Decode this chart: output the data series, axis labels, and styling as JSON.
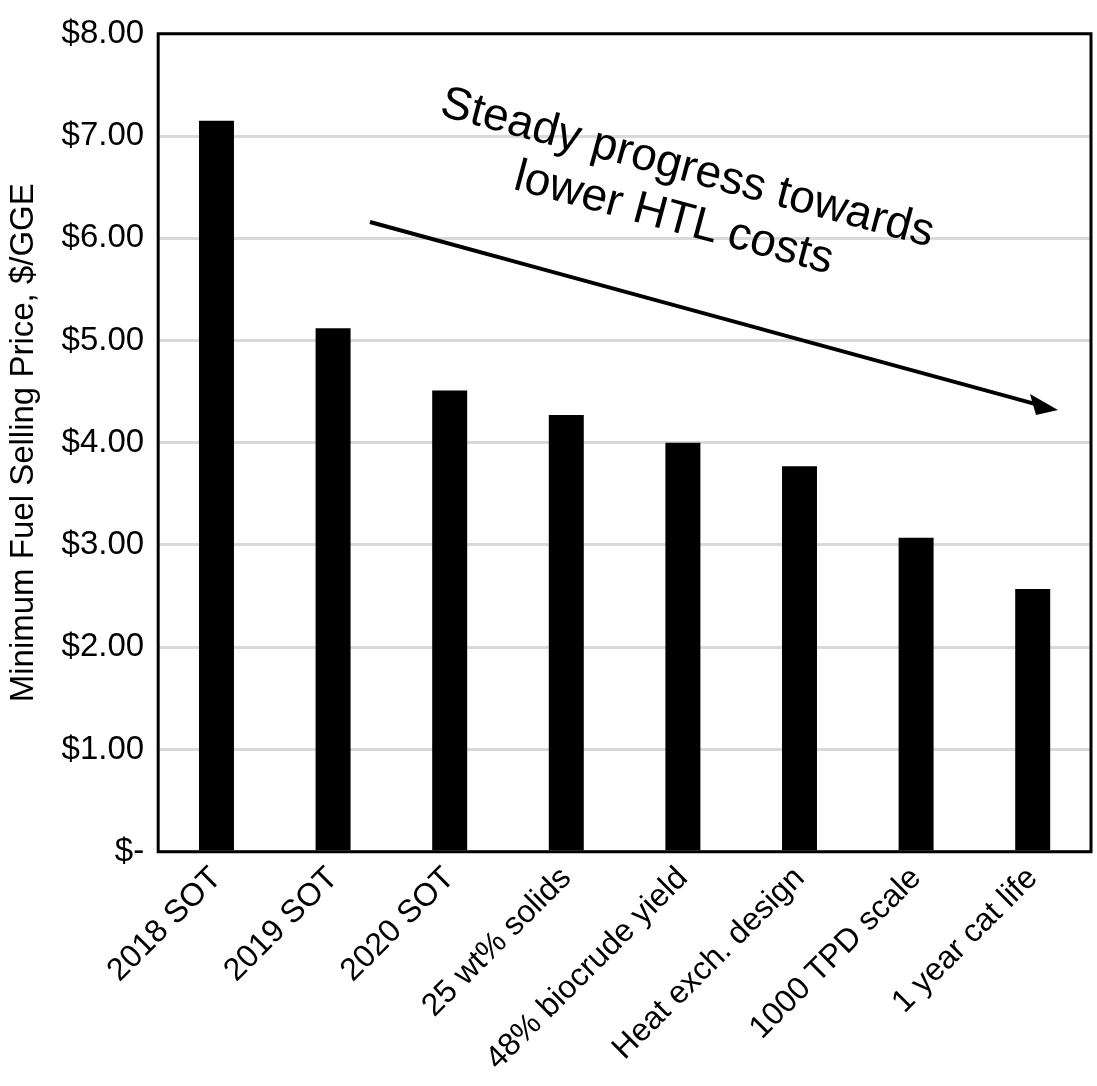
{
  "chart_data": {
    "type": "bar",
    "ylabel": "Minimum Fuel Selling Price, $/GGE",
    "categories": [
      "2018 SOT",
      "2019 SOT",
      "2020 SOT",
      "25 wt% solids",
      "48% biocrude yield",
      "Heat exch. design",
      "1000 TPD scale",
      "1 year cat life"
    ],
    "values": [
      7.15,
      5.12,
      4.51,
      4.27,
      4.0,
      3.77,
      3.07,
      2.57
    ],
    "color": "#000000",
    "ylim": [
      0,
      8
    ],
    "yticks": [
      {
        "value": 0,
        "label": "$-"
      },
      {
        "value": 1,
        "label": "$1.00"
      },
      {
        "value": 2,
        "label": "$2.00"
      },
      {
        "value": 3,
        "label": "$3.00"
      },
      {
        "value": 4,
        "label": "$4.00"
      },
      {
        "value": 5,
        "label": "$5.00"
      },
      {
        "value": 6,
        "label": "$6.00"
      },
      {
        "value": 7,
        "label": "$7.00"
      },
      {
        "value": 8,
        "label": "$8.00"
      }
    ],
    "grid": "y",
    "annotations": [
      "Steady progress towards\nlower HTL costs"
    ]
  }
}
